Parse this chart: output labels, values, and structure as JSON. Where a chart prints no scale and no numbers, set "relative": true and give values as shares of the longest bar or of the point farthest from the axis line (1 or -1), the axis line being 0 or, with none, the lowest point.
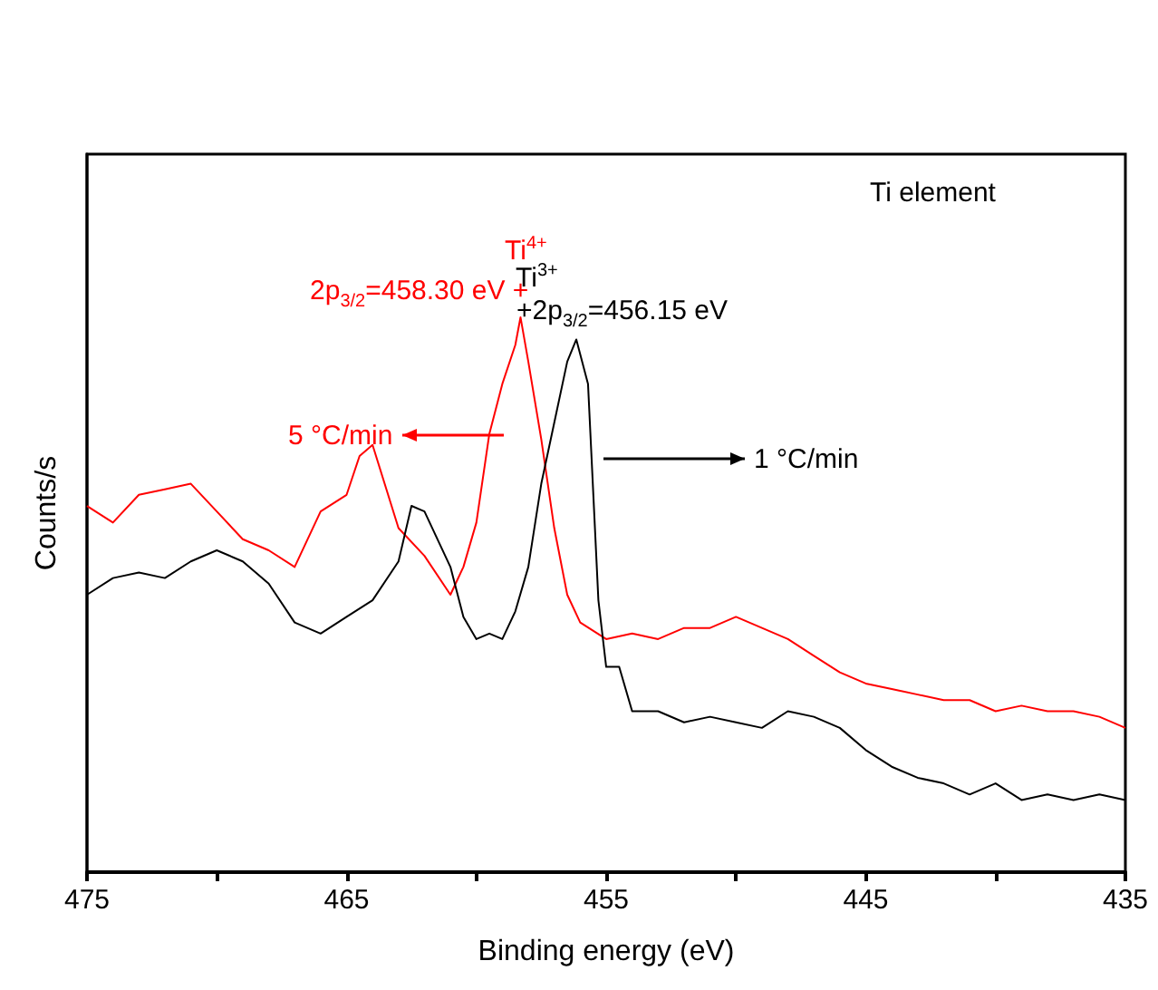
{
  "chart_data": {
    "type": "line",
    "relative": true,
    "xlabel": "Binding energy (eV)",
    "ylabel": "Counts/s",
    "xlim": [
      475,
      435
    ],
    "xticks": [
      475,
      {
        "value": 470,
        "label": null
      },
      465,
      {
        "value": 460,
        "label": null
      },
      455,
      {
        "value": 450,
        "label": null
      },
      445,
      {
        "value": 440,
        "label": null
      },
      435
    ],
    "grid": false,
    "marker": "none",
    "line_style": "solid",
    "annotations": [
      "Ti element",
      "Ti$^{4+}$",
      "2p$_{3/2}$=458.30 eV +",
      "Ti$^{3+}$",
      "+2p$_{3/2}$=456.15 eV"
    ],
    "series": [
      {
        "name": "5 °C/min",
        "color": "#ff0000",
        "x": [
          475,
          474,
          473,
          472,
          471,
          470,
          469,
          468,
          467,
          466,
          465,
          464.5,
          464,
          463,
          462,
          461,
          460.5,
          460,
          459.5,
          459,
          458.5,
          458.3,
          458,
          457.5,
          457,
          456.5,
          456,
          455,
          454,
          453,
          452,
          451,
          450,
          449,
          448,
          447,
          446,
          445,
          444,
          443,
          442,
          441,
          440,
          439,
          438,
          437,
          436,
          435
        ],
        "values": [
          0.66,
          0.63,
          0.68,
          0.69,
          0.7,
          0.65,
          0.6,
          0.58,
          0.55,
          0.65,
          0.68,
          0.75,
          0.77,
          0.62,
          0.57,
          0.5,
          0.55,
          0.63,
          0.79,
          0.88,
          0.95,
          1,
          0.92,
          0.78,
          0.62,
          0.5,
          0.45,
          0.42,
          0.43,
          0.42,
          0.44,
          0.44,
          0.46,
          0.44,
          0.42,
          0.39,
          0.36,
          0.34,
          0.33,
          0.32,
          0.31,
          0.31,
          0.29,
          0.3,
          0.29,
          0.29,
          0.28,
          0.26
        ]
      },
      {
        "name": "1 °C/min",
        "color": "#000000",
        "x": [
          475,
          474,
          473,
          472,
          471,
          470,
          469,
          468,
          467,
          466,
          465,
          464,
          463,
          462.5,
          462,
          461,
          460.5,
          460,
          459.5,
          459,
          458.5,
          458,
          457.5,
          457,
          456.5,
          456.15,
          455.7,
          455.3,
          455,
          454.5,
          454,
          453,
          452,
          451,
          450,
          449,
          448,
          447,
          446,
          445,
          444,
          443,
          442,
          441,
          440,
          439,
          438,
          437,
          436,
          435
        ],
        "values": [
          0.5,
          0.53,
          0.54,
          0.53,
          0.56,
          0.58,
          0.56,
          0.52,
          0.45,
          0.43,
          0.46,
          0.49,
          0.56,
          0.66,
          0.65,
          0.55,
          0.46,
          0.42,
          0.43,
          0.42,
          0.47,
          0.55,
          0.7,
          0.81,
          0.92,
          0.96,
          0.88,
          0.49,
          0.37,
          0.37,
          0.29,
          0.29,
          0.27,
          0.28,
          0.27,
          0.26,
          0.29,
          0.28,
          0.26,
          0.22,
          0.19,
          0.17,
          0.16,
          0.14,
          0.16,
          0.13,
          0.14,
          0.13,
          0.14,
          0.13
        ]
      }
    ]
  }
}
